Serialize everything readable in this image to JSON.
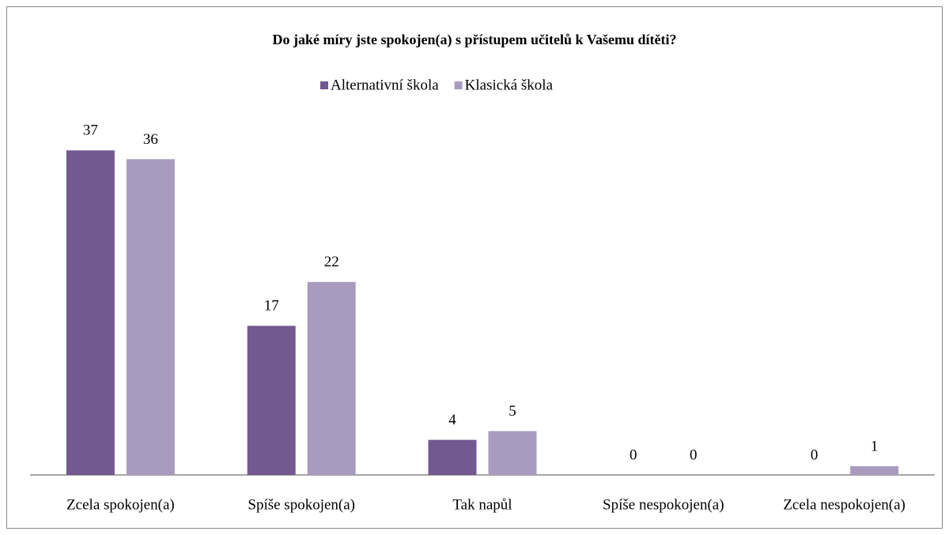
{
  "chart_data": {
    "type": "bar",
    "title": "Do jaké míry jste spokojen(a) s přístupem učitelů k Vašemu dítěti?",
    "categories": [
      "Zcela spokojen(a)",
      "Spíše spokojen(a)",
      "Tak napůl",
      "Spíše nespokojen(a)",
      "Zcela nespokojen(a)"
    ],
    "series": [
      {
        "name": "Alternativní škola",
        "color": "#725990",
        "values": [
          37,
          17,
          4,
          0,
          0
        ]
      },
      {
        "name": "Klasická škola",
        "color": "#a99bbf",
        "values": [
          36,
          22,
          5,
          0,
          1
        ]
      }
    ],
    "ylim": [
      0,
      40
    ],
    "legend": "top",
    "grid": false
  }
}
